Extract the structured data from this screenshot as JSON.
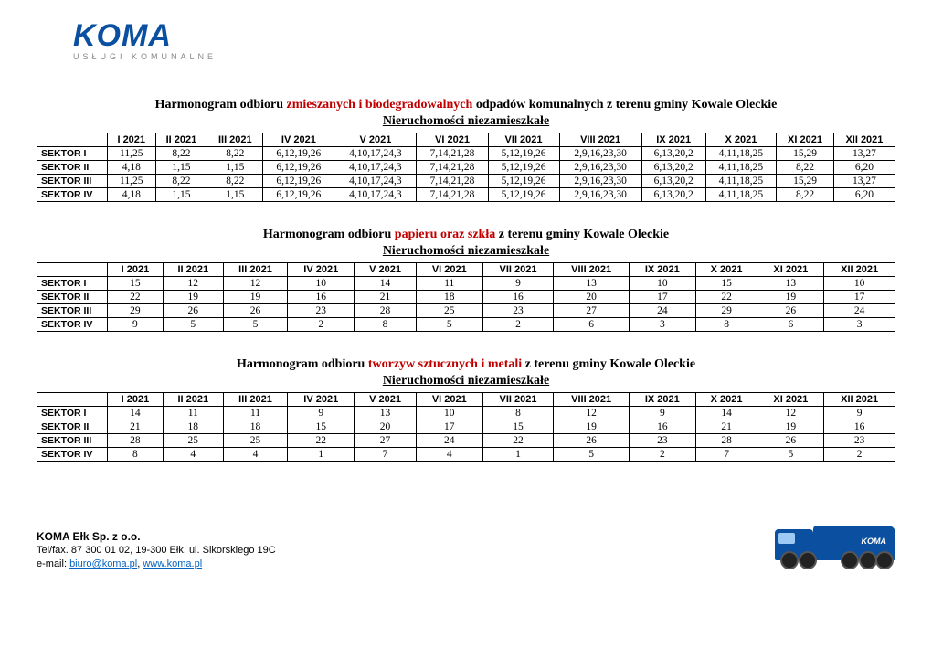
{
  "logo": {
    "main": "KOMA",
    "sub": "USŁUGI KOMUNALNE"
  },
  "months": [
    "I 2021",
    "II 2021",
    "III 2021",
    "IV 2021",
    "V 2021",
    "VI 2021",
    "VII 2021",
    "VIII 2021",
    "IX 2021",
    "X 2021",
    "XI 2021",
    "XII 2021"
  ],
  "sectors": [
    "SEKTOR I",
    "SEKTOR II",
    "SEKTOR III",
    "SEKTOR IV"
  ],
  "tables": [
    {
      "title_pre": "Harmonogram odbioru ",
      "title_red": "zmieszanych i biodegradowalnych",
      "title_post": " odpadów komunalnych z terenu gminy Kowale Oleckie",
      "subtitle": "Nieruchomości niezamieszkałe",
      "rows": [
        [
          "11,25",
          "8,22",
          "8,22",
          "6,12,19,26",
          "4,10,17,24,3",
          "7,14,21,28",
          "5,12,19,26",
          "2,9,16,23,30",
          "6,13,20,2",
          "4,11,18,25",
          "15,29",
          "13,27"
        ],
        [
          "4,18",
          "1,15",
          "1,15",
          "6,12,19,26",
          "4,10,17,24,3",
          "7,14,21,28",
          "5,12,19,26",
          "2,9,16,23,30",
          "6,13,20,2",
          "4,11,18,25",
          "8,22",
          "6,20"
        ],
        [
          "11,25",
          "8,22",
          "8,22",
          "6,12,19,26",
          "4,10,17,24,3",
          "7,14,21,28",
          "5,12,19,26",
          "2,9,16,23,30",
          "6,13,20,2",
          "4,11,18,25",
          "15,29",
          "13,27"
        ],
        [
          "4,18",
          "1,15",
          "1,15",
          "6,12,19,26",
          "4,10,17,24,3",
          "7,14,21,28",
          "5,12,19,26",
          "2,9,16,23,30",
          "6,13,20,2",
          "4,11,18,25",
          "8,22",
          "6,20"
        ]
      ]
    },
    {
      "title_pre": "Harmonogram odbioru ",
      "title_red": "papieru oraz szkła",
      "title_post": "  z terenu gminy Kowale Oleckie",
      "subtitle": "Nieruchomości niezamieszkałe",
      "rows": [
        [
          "15",
          "12",
          "12",
          "10",
          "14",
          "11",
          "9",
          "13",
          "10",
          "15",
          "13",
          "10"
        ],
        [
          "22",
          "19",
          "19",
          "16",
          "21",
          "18",
          "16",
          "20",
          "17",
          "22",
          "19",
          "17"
        ],
        [
          "29",
          "26",
          "26",
          "23",
          "28",
          "25",
          "23",
          "27",
          "24",
          "29",
          "26",
          "24"
        ],
        [
          "9",
          "5",
          "5",
          "2",
          "8",
          "5",
          "2",
          "6",
          "3",
          "8",
          "6",
          "3"
        ]
      ]
    },
    {
      "title_pre": "Harmonogram odbioru ",
      "title_red": "tworzyw sztucznych i metali",
      "title_post": "  z terenu gminy Kowale Oleckie",
      "subtitle": "Nieruchomości niezamieszkałe",
      "rows": [
        [
          "14",
          "11",
          "11",
          "9",
          "13",
          "10",
          "8",
          "12",
          "9",
          "14",
          "12",
          "9"
        ],
        [
          "21",
          "18",
          "18",
          "15",
          "20",
          "17",
          "15",
          "19",
          "16",
          "21",
          "19",
          "16"
        ],
        [
          "28",
          "25",
          "25",
          "22",
          "27",
          "24",
          "22",
          "26",
          "23",
          "28",
          "26",
          "23"
        ],
        [
          "8",
          "4",
          "4",
          "1",
          "7",
          "4",
          "1",
          "5",
          "2",
          "7",
          "5",
          "2"
        ]
      ]
    }
  ],
  "footer": {
    "company": "KOMA Ełk Sp. z o.o.",
    "line2_pre": "Tel/fax. 87 300 01 02, 19-300 Ełk, ul. Sikorskiego 19C",
    "line3_pre": "e-mail: ",
    "email": "biuro@koma.pl",
    "sep": ", ",
    "web": "www.koma.pl",
    "truck_label": "KOMA"
  }
}
